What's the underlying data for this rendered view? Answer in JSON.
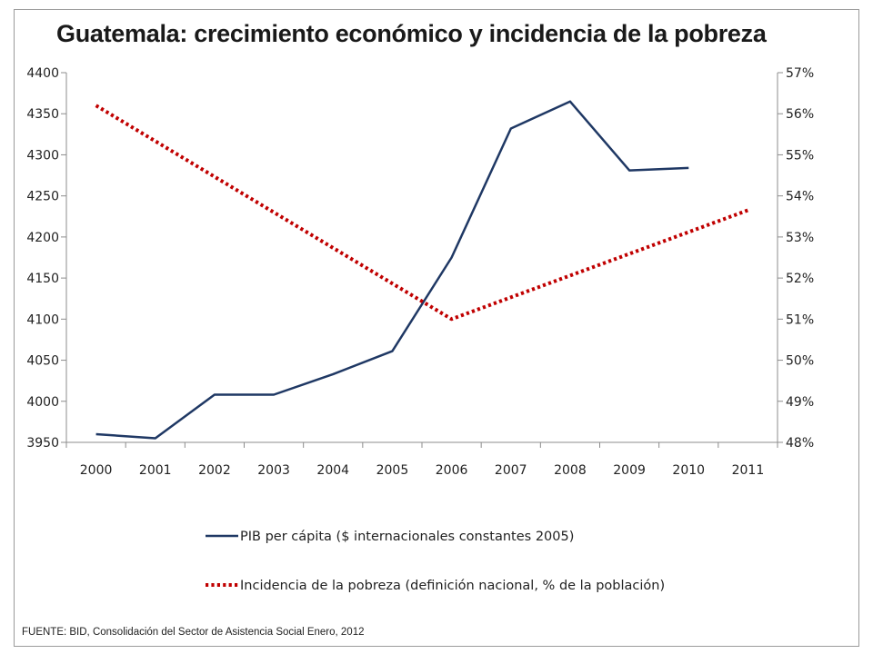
{
  "title": "Guatemala: crecimiento económico y incidencia de la pobreza",
  "source": "FUENTE: BID, Consolidación del Sector de Asistencia Social Enero, 2012",
  "colors": {
    "pib": "#1f3864",
    "pobreza": "#c00000",
    "axis": "#8c8c8c"
  },
  "chart_data": {
    "type": "line",
    "title": "Guatemala: crecimiento económico y incidencia de la pobreza",
    "x": [
      "2000",
      "2001",
      "2002",
      "2003",
      "2004",
      "2005",
      "2006",
      "2007",
      "2008",
      "2009",
      "2010",
      "2011"
    ],
    "y_left": {
      "min": 3950,
      "max": 4400,
      "step": 50,
      "ticks": [
        "3950",
        "4000",
        "4050",
        "4100",
        "4150",
        "4200",
        "4250",
        "4300",
        "4350",
        "4400"
      ]
    },
    "y_right": {
      "min": 48,
      "max": 57,
      "step": 1,
      "ticks": [
        "48%",
        "49%",
        "50%",
        "51%",
        "52%",
        "53%",
        "54%",
        "55%",
        "56%",
        "57%"
      ]
    },
    "series": [
      {
        "name": "PIB per cápita ($ internacionales constantes 2005)",
        "axis": "left",
        "style": "solid",
        "color": "#1f3864",
        "values": [
          3960,
          3955,
          4008,
          4008,
          4033,
          4061,
          4175,
          4332,
          4365,
          4281,
          4284,
          null
        ]
      },
      {
        "name": "Incidencia de la pobreza (definición nacional, % de la población)",
        "axis": "right",
        "style": "dotted",
        "color": "#c00000",
        "values": [
          56.2,
          null,
          null,
          null,
          null,
          null,
          51.0,
          null,
          null,
          null,
          null,
          53.65
        ]
      }
    ],
    "grid": false,
    "legend": "bottom"
  }
}
